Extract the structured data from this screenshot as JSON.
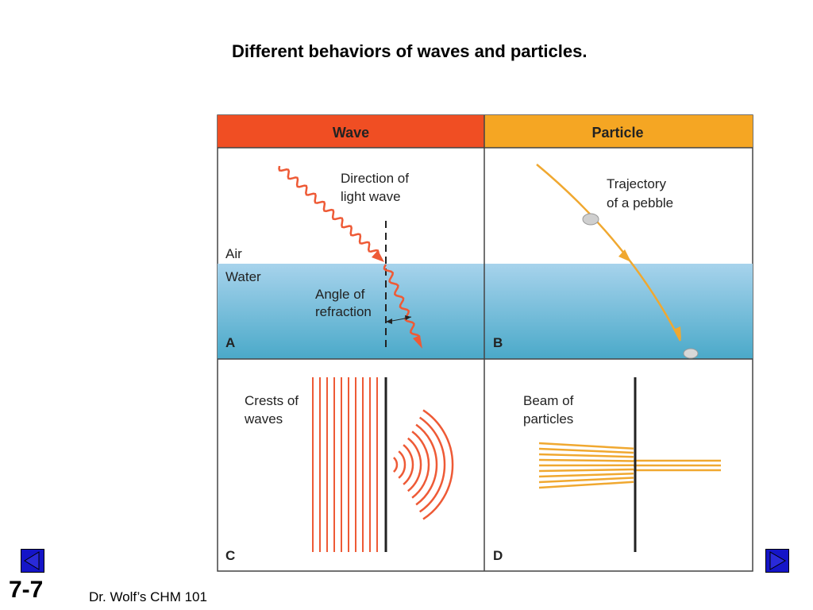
{
  "title": "Different behaviors of waves and particles.",
  "figure": {
    "headers": {
      "wave": "Wave",
      "particle": "Particle"
    },
    "panel_a": {
      "letter": "A",
      "direction_label_1": "Direction of",
      "direction_label_2": "light wave",
      "air_label": "Air",
      "water_label": "Water",
      "angle_label_1": "Angle of",
      "angle_label_2": "refraction"
    },
    "panel_b": {
      "letter": "B",
      "trajectory_label_1": "Trajectory",
      "trajectory_label_2": "of a pebble"
    },
    "panel_c": {
      "letter": "C",
      "crests_label_1": "Crests of",
      "crests_label_2": "waves"
    },
    "panel_d": {
      "letter": "D",
      "beam_label_1": "Beam of",
      "beam_label_2": "particles"
    },
    "colors": {
      "wave_header": "#f04e23",
      "particle_header": "#f5a623",
      "wave_line": "#ee5a36",
      "particle_line": "#f0a830",
      "water_top": "#a7d3ec",
      "water_bottom": "#4aa9c9"
    }
  },
  "navigation": {
    "prev_icon": "triangle-left-icon",
    "next_icon": "triangle-right-icon"
  },
  "slide_number": "7-7",
  "footer": "Dr. Wolf’s CHM 101"
}
